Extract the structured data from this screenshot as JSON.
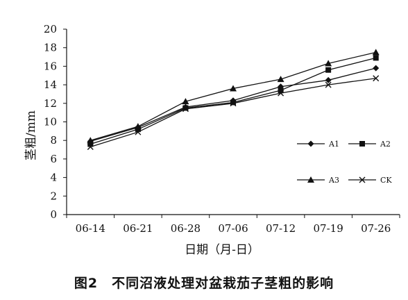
{
  "caption": "图2　不同沼液处理对盆栽茄子茎粗的影响",
  "chart_data": {
    "type": "line",
    "title": "",
    "xlabel": "日期（月-日）",
    "ylabel": "茎粗/mm",
    "categories": [
      "06-14",
      "06-21",
      "06-28",
      "07-06",
      "07-12",
      "07-19",
      "07-26"
    ],
    "yticks": [
      "0",
      "2",
      "4",
      "6",
      "8",
      "10",
      "12",
      "14",
      "16",
      "18",
      "20"
    ],
    "ylim": [
      0,
      20
    ],
    "grid": false,
    "legend_position": "right",
    "series": [
      {
        "name": "A1",
        "marker": "diamond",
        "values": [
          7.9,
          9.4,
          11.6,
          12.3,
          13.8,
          14.5,
          15.8
        ]
      },
      {
        "name": "A2",
        "marker": "square",
        "values": [
          7.6,
          9.2,
          11.5,
          12.1,
          13.4,
          15.6,
          16.9
        ]
      },
      {
        "name": "A3",
        "marker": "triangle",
        "values": [
          8.0,
          9.5,
          12.2,
          13.6,
          14.6,
          16.3,
          17.5
        ]
      },
      {
        "name": "CK",
        "marker": "x",
        "values": [
          7.3,
          8.9,
          11.4,
          12.0,
          13.1,
          14.0,
          14.7
        ]
      }
    ]
  }
}
